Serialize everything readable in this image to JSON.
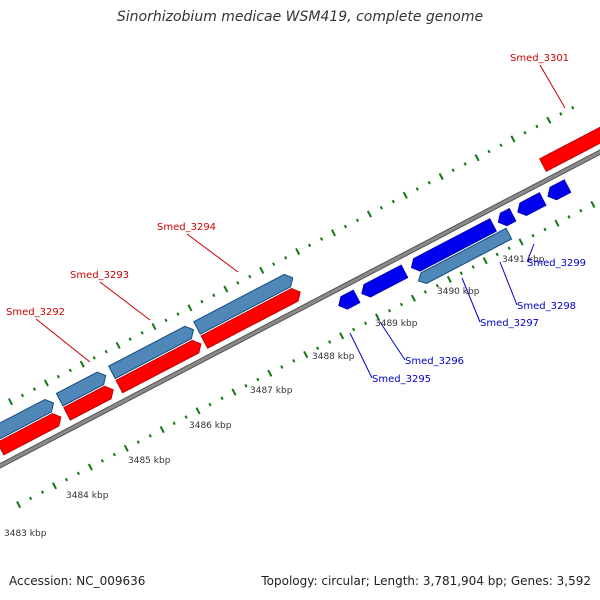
{
  "title": "Sinorhizobium medicae WSM419, complete genome",
  "footer": {
    "accession": "Accession: NC_009636",
    "summary": "Topology: circular; Length: 3,781,904 bp; Genes: 3,592"
  },
  "colors": {
    "backbone": "#8a8a8a",
    "forward_cds": "#ff0000",
    "forward_gene": "#4f87b9",
    "reverse_cds": "#0000ee",
    "reverse_gene": "#4f87b9",
    "other_feature": "#ff9900",
    "tick": "#117711",
    "label_forward": "#cc0000",
    "label_reverse": "#0000cc"
  },
  "ruler": {
    "unit": "kbp",
    "tick_labels": [
      "3483 kbp",
      "3484 kbp",
      "3485 kbp",
      "3486 kbp",
      "3487 kbp",
      "3488 kbp",
      "3489 kbp",
      "3490 kbp",
      "3491 kbp"
    ]
  },
  "features": {
    "forward": [
      {
        "name": "Smed_3292",
        "labeled": true
      },
      {
        "name": "Smed_3293",
        "labeled": true
      },
      {
        "name": "Smed_3294",
        "labeled": true
      },
      {
        "name": "Smed_3301",
        "labeled": true
      }
    ],
    "reverse": [
      {
        "name": "Smed_3295",
        "labeled": true
      },
      {
        "name": "Smed_3296",
        "labeled": true
      },
      {
        "name": "Smed_3297",
        "labeled": true
      },
      {
        "name": "Smed_3298",
        "labeled": true
      },
      {
        "name": "Smed_3299",
        "labeled": true
      }
    ]
  }
}
